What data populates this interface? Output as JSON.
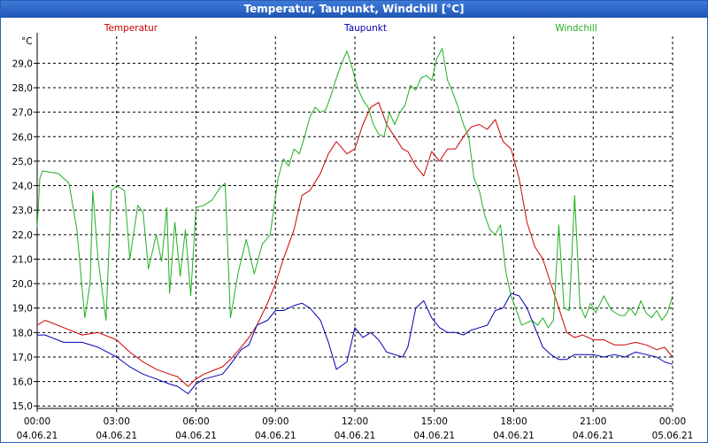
{
  "title": "Temperatur, Taupunkt, Windchill [°C]",
  "chart_data": {
    "type": "line",
    "title": "Temperatur, Taupunkt, Windchill [°C]",
    "ylabel": "°C",
    "ylim": [
      14.9,
      30.1
    ],
    "xlim": [
      0,
      24
    ],
    "grid": true,
    "y_ticks": [
      "15,0",
      "16,0",
      "17,0",
      "18,0",
      "19,0",
      "20,0",
      "21,0",
      "22,0",
      "23,0",
      "24,0",
      "25,0",
      "26,0",
      "27,0",
      "28,0",
      "29,0"
    ],
    "x_ticks": [
      {
        "time": "00:00",
        "date": "04.06.21"
      },
      {
        "time": "03:00",
        "date": "04.06.21"
      },
      {
        "time": "06:00",
        "date": "04.06.21"
      },
      {
        "time": "09:00",
        "date": "04.06.21"
      },
      {
        "time": "12:00",
        "date": "04.06.21"
      },
      {
        "time": "15:00",
        "date": "04.06.21"
      },
      {
        "time": "18:00",
        "date": "04.06.21"
      },
      {
        "time": "21:00",
        "date": "04.06.21"
      },
      {
        "time": "00:00",
        "date": "05.06.21"
      }
    ],
    "series": [
      {
        "name": "Temperatur",
        "color": "#cc0000",
        "x": [
          0,
          0.3,
          1,
          1.7,
          2.3,
          3,
          3.5,
          4,
          4.5,
          5,
          5.3,
          5.7,
          6,
          6.3,
          7,
          7.3,
          7.7,
          8,
          8.3,
          8.7,
          9,
          9.3,
          9.7,
          10,
          10.3,
          10.7,
          11,
          11.3,
          11.7,
          12,
          12.3,
          12.6,
          12.9,
          13.2,
          13.5,
          13.8,
          14,
          14.3,
          14.6,
          14.9,
          15.2,
          15.5,
          15.8,
          16.1,
          16.4,
          16.7,
          17,
          17.3,
          17.6,
          17.9,
          18.2,
          18.5,
          18.8,
          19.1,
          19.4,
          19.7,
          20,
          20.3,
          20.6,
          21,
          21.4,
          21.8,
          22.2,
          22.6,
          23,
          23.4,
          23.7,
          24
        ],
        "y": [
          18.3,
          18.5,
          18.2,
          17.9,
          18.0,
          17.7,
          17.2,
          16.8,
          16.5,
          16.3,
          16.2,
          15.8,
          16.1,
          16.3,
          16.6,
          16.9,
          17.4,
          17.8,
          18.3,
          19.2,
          20.0,
          21.0,
          22.2,
          23.6,
          23.8,
          24.5,
          25.3,
          25.8,
          25.3,
          25.5,
          26.5,
          27.2,
          27.4,
          26.5,
          26.0,
          25.5,
          25.4,
          24.8,
          24.4,
          25.4,
          25.0,
          25.5,
          25.5,
          26.0,
          26.4,
          26.5,
          26.3,
          26.7,
          25.8,
          25.5,
          24.3,
          22.5,
          21.5,
          21.0,
          20.0,
          19.0,
          18.0,
          17.8,
          17.9,
          17.7,
          17.7,
          17.5,
          17.5,
          17.6,
          17.5,
          17.3,
          17.4,
          17.0
        ]
      },
      {
        "name": "Taupunkt",
        "color": "#0000b4",
        "x": [
          0,
          0.3,
          1,
          1.7,
          2.3,
          3,
          3.5,
          4,
          4.5,
          5,
          5.3,
          5.7,
          6,
          6.3,
          7,
          7.3,
          7.7,
          8,
          8.3,
          8.7,
          9,
          9.3,
          9.7,
          10,
          10.3,
          10.7,
          11,
          11.3,
          11.7,
          12,
          12.3,
          12.6,
          12.9,
          13.2,
          13.5,
          13.8,
          14,
          14.3,
          14.6,
          14.9,
          15.2,
          15.5,
          15.8,
          16.1,
          16.4,
          16.7,
          17,
          17.3,
          17.6,
          17.9,
          18.2,
          18.5,
          18.8,
          19.1,
          19.4,
          19.7,
          20,
          20.3,
          20.6,
          21,
          21.4,
          21.8,
          22.2,
          22.6,
          23,
          23.4,
          23.7,
          24
        ],
        "y": [
          17.9,
          17.9,
          17.6,
          17.6,
          17.4,
          17.0,
          16.6,
          16.3,
          16.1,
          15.9,
          15.8,
          15.5,
          15.9,
          16.1,
          16.3,
          16.7,
          17.3,
          17.5,
          18.3,
          18.5,
          18.9,
          18.9,
          19.1,
          19.2,
          19.0,
          18.5,
          17.6,
          16.5,
          16.8,
          18.2,
          17.8,
          18.0,
          17.7,
          17.2,
          17.1,
          17.0,
          17.4,
          19.0,
          19.3,
          18.6,
          18.2,
          18.0,
          18.0,
          17.9,
          18.1,
          18.2,
          18.3,
          18.9,
          19.0,
          19.6,
          19.5,
          19.0,
          18.2,
          17.4,
          17.1,
          16.9,
          16.9,
          17.1,
          17.1,
          17.1,
          17.0,
          17.1,
          17.0,
          17.2,
          17.1,
          17.0,
          16.8,
          16.7
        ]
      },
      {
        "name": "Windchill",
        "color": "#1fb01f",
        "x": [
          0,
          0.1,
          0.2,
          0.8,
          1.2,
          1.5,
          1.8,
          2.0,
          2.1,
          2.3,
          2.6,
          2.8,
          3.0,
          3.3,
          3.5,
          3.8,
          4.0,
          4.2,
          4.5,
          4.7,
          4.9,
          5.0,
          5.2,
          5.4,
          5.6,
          5.8,
          6.0,
          6.3,
          6.6,
          6.9,
          7.1,
          7.3,
          7.6,
          7.9,
          8.2,
          8.5,
          8.8,
          9.1,
          9.3,
          9.5,
          9.7,
          9.9,
          10.1,
          10.3,
          10.5,
          10.7,
          10.9,
          11.1,
          11.3,
          11.5,
          11.7,
          11.9,
          12.1,
          12.3,
          12.5,
          12.7,
          12.9,
          13.1,
          13.3,
          13.5,
          13.7,
          13.9,
          14.1,
          14.3,
          14.5,
          14.7,
          14.9,
          15.1,
          15.3,
          15.5,
          15.7,
          15.9,
          16.1,
          16.3,
          16.5,
          16.7,
          16.9,
          17.1,
          17.3,
          17.5,
          17.7,
          17.9,
          18.1,
          18.3,
          18.5,
          18.7,
          18.9,
          19.1,
          19.3,
          19.5,
          19.7,
          19.9,
          20.1,
          20.3,
          20.5,
          20.7,
          20.9,
          21.1,
          21.4,
          21.7,
          22.0,
          22.2,
          22.4,
          22.6,
          22.8,
          23.0,
          23.2,
          23.4,
          23.6,
          23.8,
          24.0
        ],
        "y": [
          22.3,
          24.3,
          24.6,
          24.5,
          24.1,
          22.2,
          18.6,
          20.0,
          23.8,
          21.0,
          18.5,
          23.8,
          24.0,
          23.8,
          21.0,
          23.2,
          22.9,
          20.6,
          22.0,
          20.9,
          23.1,
          19.6,
          22.5,
          20.3,
          22.2,
          19.5,
          23.1,
          23.2,
          23.4,
          23.9,
          24.1,
          18.6,
          20.5,
          21.8,
          20.4,
          21.6,
          22.0,
          24.3,
          25.1,
          24.8,
          25.5,
          25.3,
          26.0,
          26.8,
          27.2,
          27.0,
          27.1,
          27.7,
          28.4,
          29.0,
          29.5,
          28.8,
          28.0,
          27.5,
          27.2,
          26.5,
          26.1,
          26.0,
          27.0,
          26.5,
          27.0,
          27.3,
          28.1,
          27.9,
          28.4,
          28.5,
          28.3,
          29.2,
          29.6,
          28.3,
          27.8,
          27.2,
          26.5,
          26.0,
          24.3,
          23.8,
          22.8,
          22.2,
          22.0,
          22.4,
          20.5,
          19.5,
          18.9,
          18.3,
          18.4,
          18.5,
          18.3,
          18.6,
          18.2,
          18.5,
          22.4,
          19.0,
          18.9,
          23.6,
          19.1,
          18.6,
          19.2,
          18.8,
          19.5,
          18.9,
          18.7,
          18.7,
          19.0,
          18.7,
          19.3,
          18.8,
          18.6,
          18.9,
          18.5,
          18.8,
          19.5
        ]
      }
    ]
  }
}
